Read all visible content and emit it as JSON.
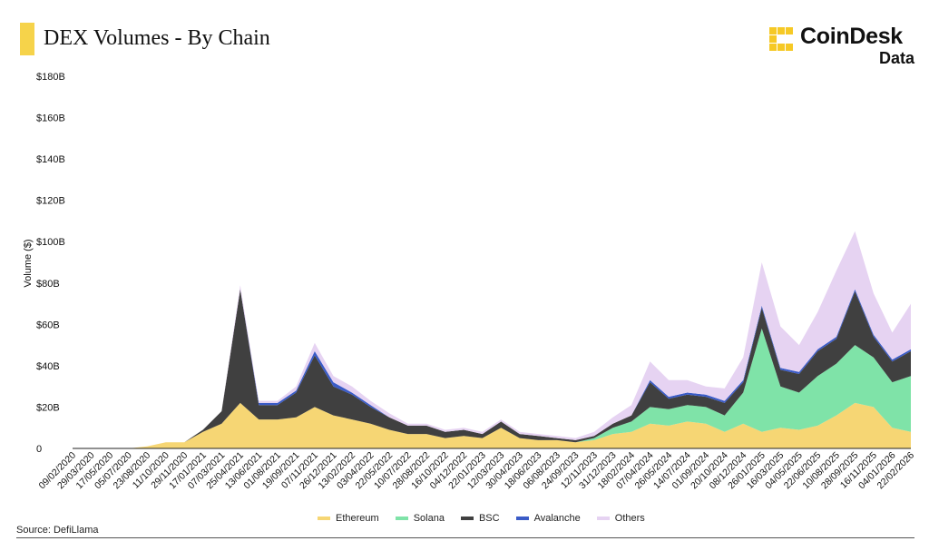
{
  "header": {
    "title": "DEX Volumes - By Chain",
    "brand_name": "CoinDesk",
    "brand_sub": "Data"
  },
  "footer": {
    "source": "Source: DefiLlama"
  },
  "colors": {
    "ethereum": "#f6d674",
    "solana": "#7fe3a8",
    "bsc": "#404040",
    "avalanche": "#3a5bc7",
    "others": "#e6d3f2",
    "brand": "#f6c925"
  },
  "chart_data": {
    "type": "area",
    "stacked": true,
    "title": "DEX Volumes - By Chain",
    "ylabel": "Volume ($)",
    "xlabel": "",
    "ylim": [
      0,
      180
    ],
    "yticks": [
      "0",
      "$20B",
      "$40B",
      "$60B",
      "$80B",
      "$100B",
      "$120B",
      "$140B",
      "$160B",
      "$180B"
    ],
    "ytick_values": [
      0,
      20,
      40,
      60,
      80,
      100,
      120,
      140,
      160,
      180
    ],
    "xtick_labels": [
      "09/02/2020",
      "29/03/2020",
      "17/05/2020",
      "05/07/2020",
      "23/08/2020",
      "11/10/2020",
      "29/11/2020",
      "17/01/2021",
      "07/03/2021",
      "25/04/2021",
      "13/06/2021",
      "01/08/2021",
      "19/09/2021",
      "07/11/2021",
      "26/12/2021",
      "13/02/2022",
      "03/04/2022",
      "22/05/2022",
      "10/07/2022",
      "28/08/2022",
      "16/10/2022",
      "04/12/2022",
      "22/01/2023",
      "12/03/2023",
      "30/04/2023",
      "18/06/2023",
      "06/08/2023",
      "24/09/2023",
      "12/11/2023",
      "31/12/2023",
      "18/02/2024",
      "07/04/2024",
      "26/05/2024",
      "14/07/2024",
      "01/09/2024",
      "20/10/2024",
      "08/12/2024",
      "26/01/2025",
      "16/03/2025",
      "04/05/2025",
      "22/06/2025",
      "10/08/2025",
      "28/09/2025",
      "16/11/2025",
      "04/01/2026",
      "22/02/2026"
    ],
    "x": [
      "09/02/2020",
      "29/03/2020",
      "17/05/2020",
      "05/07/2020",
      "23/08/2020",
      "11/10/2020",
      "29/11/2020",
      "17/01/2021",
      "07/03/2021",
      "25/04/2021",
      "13/06/2021",
      "01/08/2021",
      "19/09/2021",
      "07/11/2021",
      "26/12/2021",
      "13/02/2022",
      "03/04/2022",
      "22/05/2022",
      "10/07/2022",
      "28/08/2022",
      "16/10/2022",
      "04/12/2022",
      "22/01/2023",
      "12/03/2023",
      "30/04/2023",
      "18/06/2023",
      "06/08/2023",
      "24/09/2023",
      "12/11/2023",
      "31/12/2023",
      "18/02/2024",
      "07/04/2024",
      "26/05/2024",
      "14/07/2024",
      "01/09/2024",
      "20/10/2024",
      "08/12/2024",
      "26/01/2025",
      "16/03/2025",
      "04/05/2025",
      "22/06/2025",
      "10/08/2025",
      "28/09/2025",
      "16/11/2025",
      "04/01/2026",
      "22/02/2026"
    ],
    "legend_position": "bottom-center",
    "series": [
      {
        "name": "Ethereum",
        "values": [
          0,
          0,
          0,
          0,
          1,
          3,
          3,
          8,
          12,
          22,
          14,
          14,
          15,
          20,
          16,
          14,
          12,
          9,
          7,
          7,
          5,
          6,
          5,
          10,
          5,
          4,
          4,
          3,
          4,
          7,
          8,
          12,
          11,
          13,
          12,
          8,
          12,
          8,
          10,
          9,
          11,
          16,
          22,
          20,
          10,
          8
        ]
      },
      {
        "name": "Solana",
        "values": [
          0,
          0,
          0,
          0,
          0,
          0,
          0,
          0,
          0,
          0,
          0,
          0,
          0,
          0,
          0,
          0,
          0,
          0,
          0,
          0,
          0,
          0,
          0,
          0,
          0,
          0,
          0,
          0,
          1,
          3,
          5,
          8,
          8,
          8,
          8,
          8,
          15,
          50,
          20,
          18,
          24,
          25,
          28,
          24,
          22,
          27
        ]
      },
      {
        "name": "BSC",
        "values": [
          0,
          0,
          0,
          0,
          0,
          0,
          0,
          1,
          6,
          55,
          7,
          7,
          12,
          25,
          14,
          12,
          8,
          6,
          4,
          4,
          3,
          3,
          2,
          3,
          2,
          2,
          1,
          1,
          1,
          2,
          3,
          12,
          5,
          5,
          5,
          6,
          5,
          10,
          8,
          9,
          12,
          12,
          26,
          10,
          10,
          12
        ]
      },
      {
        "name": "Avalanche",
        "values": [
          0,
          0,
          0,
          0,
          0,
          0,
          0,
          0,
          0,
          0,
          1,
          1,
          1,
          2,
          2,
          1,
          1,
          0,
          0,
          0,
          0,
          0,
          0,
          0,
          0,
          0,
          0,
          0,
          0,
          0,
          0,
          1,
          1,
          1,
          1,
          1,
          1,
          1,
          1,
          1,
          1,
          1,
          1,
          1,
          1,
          1
        ]
      },
      {
        "name": "Others",
        "values": [
          0,
          0,
          0,
          0,
          0,
          0,
          0,
          0,
          0,
          2,
          1,
          1,
          2,
          4,
          3,
          3,
          2,
          2,
          1,
          1,
          1,
          1,
          1,
          1,
          1,
          1,
          1,
          1,
          2,
          3,
          5,
          9,
          8,
          6,
          4,
          6,
          11,
          21,
          20,
          13,
          18,
          32,
          28,
          20,
          13,
          22
        ]
      }
    ]
  }
}
